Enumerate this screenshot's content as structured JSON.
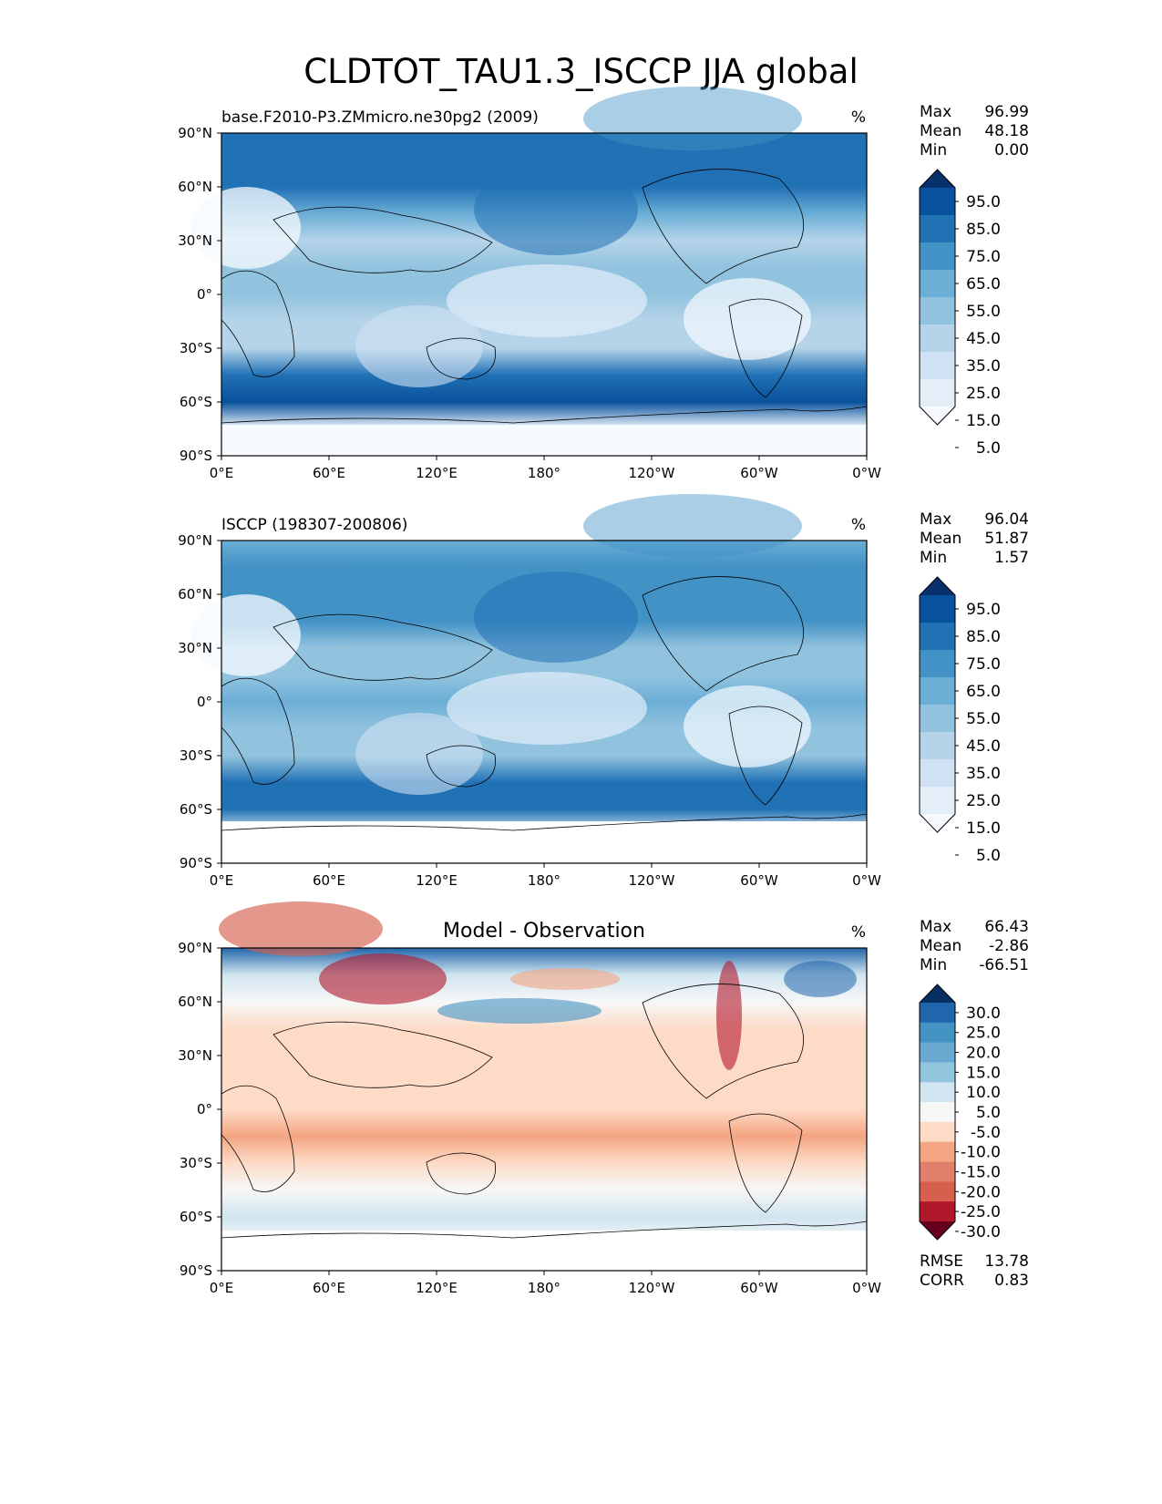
{
  "title": "CLDTOT_TAU1.3_ISCCP JJA global",
  "chart_data": [
    {
      "type": "heatmap",
      "title_left": "base.F2010-P3.ZMmicro.ne30pg2 (2009)",
      "title_center": "",
      "units": "%",
      "stats": {
        "max_label": "Max",
        "max": "96.99",
        "mean_label": "Mean",
        "mean": "48.18",
        "min_label": "Min",
        "min": "0.00"
      },
      "colorbar": {
        "levels": [
          "95.0",
          "85.0",
          "75.0",
          "65.0",
          "55.0",
          "45.0",
          "35.0",
          "25.0",
          "15.0",
          "5.0"
        ],
        "colors": [
          "#08306b",
          "#08519c",
          "#2171b5",
          "#4292c6",
          "#6baed6",
          "#92c3de",
          "#b5d4e9",
          "#cfe1f2",
          "#e3eef9",
          "#f7fbff"
        ]
      },
      "xlabels": [
        "0°E",
        "60°E",
        "120°E",
        "180°",
        "120°W",
        "60°W",
        "0°W"
      ],
      "ylabels": [
        "90°N",
        "60°N",
        "30°N",
        "0°",
        "30°S",
        "60°S",
        "90°S"
      ],
      "zonal_mean_profile": {
        "lat": [
          90,
          75,
          60,
          45,
          30,
          15,
          0,
          -15,
          -30,
          -45,
          -60,
          -75,
          -90
        ],
        "values": [
          80,
          75,
          72,
          60,
          40,
          45,
          50,
          35,
          40,
          75,
          82,
          10,
          0
        ]
      }
    },
    {
      "type": "heatmap",
      "title_left": "ISCCP (198307-200806)",
      "title_center": "",
      "units": "%",
      "stats": {
        "max_label": "Max",
        "max": "96.04",
        "mean_label": "Mean",
        "mean": "51.87",
        "min_label": "Min",
        "min": "1.57"
      },
      "colorbar": {
        "levels": [
          "95.0",
          "85.0",
          "75.0",
          "65.0",
          "55.0",
          "45.0",
          "35.0",
          "25.0",
          "15.0",
          "5.0"
        ],
        "colors": [
          "#08306b",
          "#08519c",
          "#2171b5",
          "#4292c6",
          "#6baed6",
          "#92c3de",
          "#b5d4e9",
          "#cfe1f2",
          "#e3eef9",
          "#f7fbff"
        ]
      },
      "xlabels": [
        "0°E",
        "60°E",
        "120°E",
        "180°",
        "120°W",
        "60°W",
        "0°W"
      ],
      "ylabels": [
        "90°N",
        "60°N",
        "30°N",
        "0°",
        "30°S",
        "60°S",
        "90°S"
      ],
      "zonal_mean_profile": {
        "lat": [
          90,
          75,
          60,
          45,
          30,
          15,
          0,
          -15,
          -30,
          -45,
          -60,
          -75,
          -90
        ],
        "values": [
          55,
          68,
          70,
          62,
          45,
          50,
          55,
          42,
          45,
          72,
          76,
          0,
          0
        ]
      }
    },
    {
      "type": "heatmap",
      "title_left": "",
      "title_center": "Model - Observation",
      "units": "%",
      "stats": {
        "max_label": "Max",
        "max": "66.43",
        "mean_label": "Mean",
        "mean": "-2.86",
        "min_label": "Min",
        "min": "-66.51"
      },
      "extra_stats": {
        "rmse_label": "RMSE",
        "rmse": "13.78",
        "corr_label": "CORR",
        "corr": "0.83"
      },
      "colorbar": {
        "levels": [
          "30.0",
          "25.0",
          "20.0",
          "15.0",
          "10.0",
          "5.0",
          "-5.0",
          "-10.0",
          "-15.0",
          "-20.0",
          "-25.0",
          "-30.0"
        ],
        "colors": [
          "#053061",
          "#2166ac",
          "#4393c3",
          "#6aa9d1",
          "#92c5de",
          "#d1e5f0",
          "#f7f7f7",
          "#fddbc7",
          "#f4a582",
          "#e0806a",
          "#d6604d",
          "#b2182b",
          "#67001f"
        ]
      },
      "xlabels": [
        "0°E",
        "60°E",
        "120°E",
        "180°",
        "120°W",
        "60°W",
        "0°W"
      ],
      "ylabels": [
        "90°N",
        "60°N",
        "30°N",
        "0°",
        "30°S",
        "60°S",
        "90°S"
      ],
      "zonal_mean_profile": {
        "lat": [
          90,
          75,
          60,
          45,
          30,
          15,
          0,
          -15,
          -30,
          -45,
          -60,
          -75,
          -90
        ],
        "values": [
          25,
          5,
          2,
          -2,
          -5,
          -5,
          -5,
          -7,
          -5,
          3,
          6,
          0,
          0
        ]
      }
    }
  ]
}
